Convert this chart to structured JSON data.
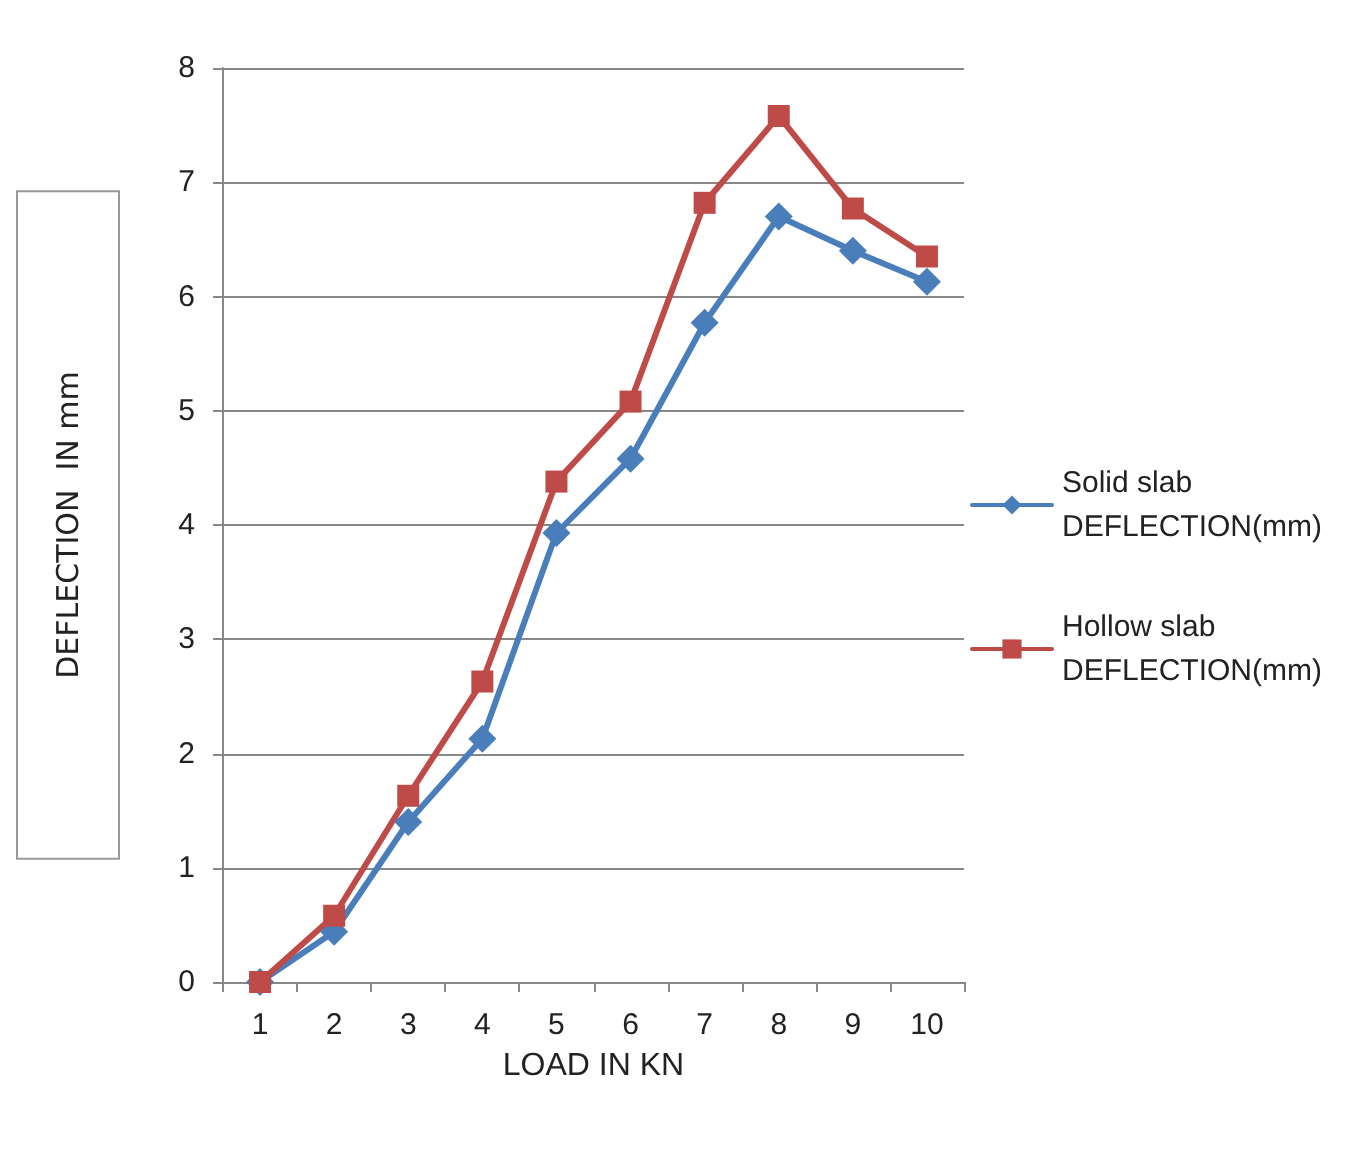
{
  "chart_data": {
    "type": "line",
    "xlabel": "LOAD IN KN",
    "ylabel": "DEFLECTION  IN mm",
    "categories": [
      "1",
      "2",
      "3",
      "4",
      "5",
      "6",
      "7",
      "8",
      "9",
      "10"
    ],
    "series": [
      {
        "name": "Solid slab DEFLECTION(mm)",
        "color": "#4a7ebb",
        "marker": "diamond",
        "values": [
          0,
          0.44,
          1.4,
          2.13,
          3.93,
          4.58,
          5.77,
          6.7,
          6.4,
          6.13
        ]
      },
      {
        "name": "Hollow slab DEFLECTION(mm)",
        "color": "#be4b48",
        "marker": "square",
        "values": [
          0,
          0.58,
          1.63,
          2.63,
          4.38,
          5.08,
          6.82,
          7.58,
          6.77,
          6.35
        ]
      }
    ],
    "ylim": [
      0,
      8
    ],
    "yticks": [
      0,
      1,
      2,
      3,
      4,
      5,
      6,
      7,
      8
    ],
    "grid": "y",
    "legend": "right",
    "line_style": "solid"
  }
}
